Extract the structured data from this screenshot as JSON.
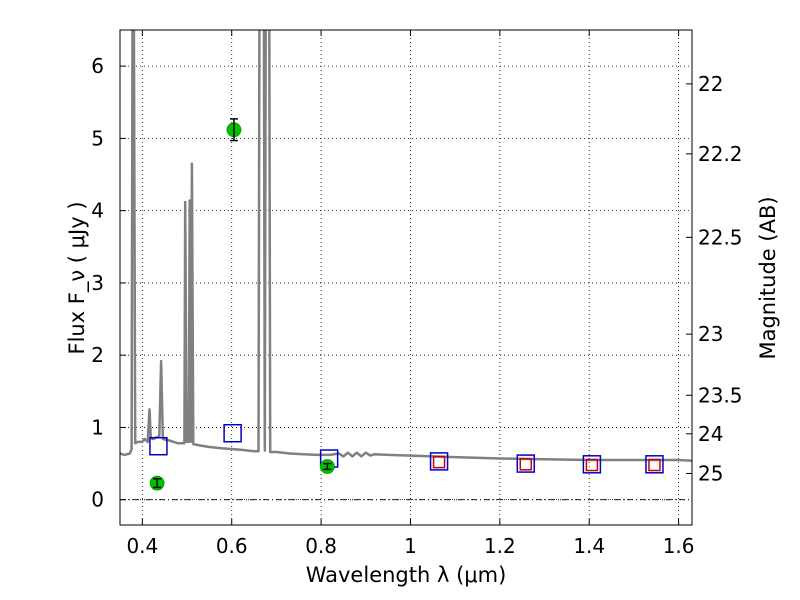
{
  "chart_data": {
    "type": "line",
    "title": "",
    "xlabel": "Wavelength  λ (μm)",
    "ylabel": "Flux  F_ν  ( μJy )",
    "ylabel_right": "Magnitude (AB)",
    "xlim": [
      0.35,
      1.63
    ],
    "ylim": [
      -0.35,
      6.5
    ],
    "grid": true,
    "x_ticks": [
      {
        "value": 0.4,
        "label": "0.4"
      },
      {
        "value": 0.6,
        "label": "0.6"
      },
      {
        "value": 0.8,
        "label": "0.8"
      },
      {
        "value": 1.0,
        "label": "1"
      },
      {
        "value": 1.2,
        "label": "1.2"
      },
      {
        "value": 1.4,
        "label": "1.4"
      },
      {
        "value": 1.6,
        "label": "1.6"
      }
    ],
    "y_ticks": [
      {
        "value": 0,
        "label": "0"
      },
      {
        "value": 1,
        "label": "1"
      },
      {
        "value": 2,
        "label": "2"
      },
      {
        "value": 3,
        "label": "3"
      },
      {
        "value": 4,
        "label": "4"
      },
      {
        "value": 5,
        "label": "5"
      },
      {
        "value": 6,
        "label": "6"
      }
    ],
    "y2_ticks": [
      {
        "mag": 22,
        "label": "22"
      },
      {
        "mag": 22.2,
        "label": "22.2"
      },
      {
        "mag": 22.5,
        "label": "22.5"
      },
      {
        "mag": 23,
        "label": "23"
      },
      {
        "mag": 23.5,
        "label": "23.5"
      },
      {
        "mag": 24,
        "label": "24"
      },
      {
        "mag": 25,
        "label": "25"
      }
    ],
    "colors": {
      "model": "#808080",
      "observed_marker": "#00c000",
      "model_box_blue": "#0000cc",
      "model_box_red": "#cc0000"
    },
    "series": [
      {
        "kind": "model_spectrum",
        "points": [
          [
            0.35,
            0.64
          ],
          [
            0.36,
            0.62
          ],
          [
            0.372,
            0.64
          ],
          [
            0.376,
            0.7
          ],
          [
            0.378,
            6.6
          ],
          [
            0.381,
            6.6
          ],
          [
            0.384,
            0.78
          ],
          [
            0.39,
            0.8
          ],
          [
            0.4,
            0.8
          ],
          [
            0.405,
            0.84
          ],
          [
            0.412,
            0.8
          ],
          [
            0.416,
            1.25
          ],
          [
            0.419,
            0.85
          ],
          [
            0.425,
            0.84
          ],
          [
            0.43,
            0.86
          ],
          [
            0.438,
            0.88
          ],
          [
            0.442,
            1.92
          ],
          [
            0.446,
            0.84
          ],
          [
            0.46,
            0.82
          ],
          [
            0.48,
            0.78
          ],
          [
            0.494,
            0.78
          ],
          [
            0.496,
            4.12
          ],
          [
            0.499,
            0.8
          ],
          [
            0.504,
            0.8
          ],
          [
            0.506,
            4.14
          ],
          [
            0.509,
            0.8
          ],
          [
            0.511,
            4.65
          ],
          [
            0.514,
            0.77
          ],
          [
            0.53,
            0.75
          ],
          [
            0.55,
            0.73
          ],
          [
            0.58,
            0.71
          ],
          [
            0.62,
            0.69
          ],
          [
            0.65,
            0.67
          ],
          [
            0.66,
            0.67
          ],
          [
            0.662,
            6.6
          ],
          [
            0.672,
            6.6
          ],
          [
            0.674,
            0.68
          ],
          [
            0.676,
            6.6
          ],
          [
            0.684,
            6.6
          ],
          [
            0.686,
            0.66
          ],
          [
            0.7,
            0.66
          ],
          [
            0.73,
            0.64
          ],
          [
            0.76,
            0.63
          ],
          [
            0.79,
            0.62
          ],
          [
            0.82,
            0.62
          ],
          [
            0.84,
            0.64
          ],
          [
            0.85,
            0.6
          ],
          [
            0.86,
            0.65
          ],
          [
            0.87,
            0.6
          ],
          [
            0.88,
            0.65
          ],
          [
            0.89,
            0.6
          ],
          [
            0.9,
            0.65
          ],
          [
            0.91,
            0.61
          ],
          [
            0.92,
            0.63
          ],
          [
            0.95,
            0.62
          ],
          [
            1.0,
            0.61
          ],
          [
            1.1,
            0.59
          ],
          [
            1.2,
            0.57
          ],
          [
            1.3,
            0.56
          ],
          [
            1.4,
            0.55
          ],
          [
            1.5,
            0.55
          ],
          [
            1.6,
            0.55
          ],
          [
            1.63,
            0.54
          ]
        ]
      },
      {
        "kind": "observed",
        "marker": "circle",
        "points": [
          {
            "x": 0.433,
            "y": 0.23,
            "err": 0.06
          },
          {
            "x": 0.605,
            "y": 5.12,
            "err": 0.15
          },
          {
            "x": 0.814,
            "y": 0.46,
            "err": 0.04
          }
        ]
      },
      {
        "kind": "model_photometry_blue",
        "marker": "square",
        "points": [
          {
            "x": 0.436,
            "y": 0.74
          },
          {
            "x": 0.602,
            "y": 0.92
          },
          {
            "x": 0.818,
            "y": 0.57
          },
          {
            "x": 1.064,
            "y": 0.53
          },
          {
            "x": 1.258,
            "y": 0.5
          },
          {
            "x": 1.406,
            "y": 0.49
          },
          {
            "x": 1.546,
            "y": 0.49
          }
        ]
      },
      {
        "kind": "model_photometry_red",
        "marker": "square",
        "points": [
          {
            "x": 1.064,
            "y": 0.52
          },
          {
            "x": 1.258,
            "y": 0.49
          },
          {
            "x": 1.406,
            "y": 0.48
          },
          {
            "x": 1.546,
            "y": 0.48
          }
        ]
      }
    ]
  }
}
